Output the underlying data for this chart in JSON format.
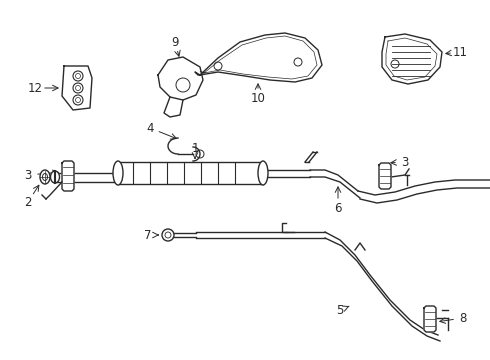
{
  "bg_color": "#ffffff",
  "lc": "#2a2a2a",
  "lw": 1.0,
  "fig_w": 4.9,
  "fig_h": 3.6,
  "dpi": 100
}
